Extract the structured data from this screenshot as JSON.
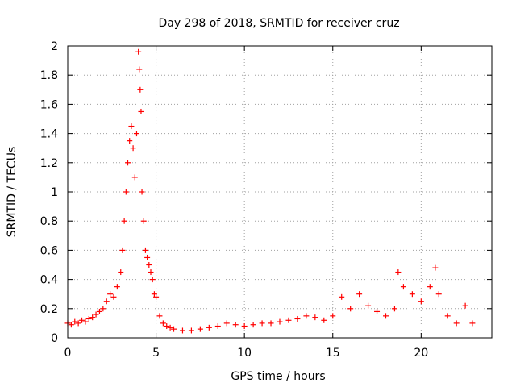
{
  "chart_data": {
    "type": "scatter",
    "title": "Day 298 of 2018, SRMTID for receiver cruz",
    "xlabel": "GPS time / hours",
    "ylabel": "SRMTID / TECUs",
    "xlim": [
      0,
      24
    ],
    "ylim": [
      0,
      2
    ],
    "x_ticks": [
      0,
      5,
      10,
      15,
      20
    ],
    "x_tick_labels": [
      "0",
      "5",
      "10",
      "15",
      "20"
    ],
    "y_ticks": [
      0,
      0.2,
      0.4,
      0.6,
      0.8,
      1,
      1.2,
      1.4,
      1.6,
      1.8,
      2
    ],
    "y_tick_labels": [
      "0",
      "0.2",
      "0.4",
      "0.6",
      "0.8",
      "1",
      "1.2",
      "1.4",
      "1.6",
      "1.8",
      "2"
    ],
    "grid": true,
    "marker": "+",
    "series": [
      {
        "name": "SRMTID",
        "color": "#ff0000",
        "x": [
          0.0,
          0.2,
          0.4,
          0.6,
          0.8,
          1.0,
          1.2,
          1.4,
          1.6,
          1.8,
          2.0,
          2.2,
          2.4,
          2.6,
          2.8,
          3.0,
          3.1,
          3.2,
          3.3,
          3.4,
          3.5,
          3.6,
          3.7,
          3.8,
          3.9,
          4.0,
          4.05,
          4.1,
          4.15,
          4.2,
          4.3,
          4.4,
          4.5,
          4.6,
          4.7,
          4.8,
          4.9,
          5.0,
          5.2,
          5.4,
          5.6,
          5.8,
          6.0,
          6.5,
          7.0,
          7.5,
          8.0,
          8.5,
          9.0,
          9.5,
          10.0,
          10.5,
          11.0,
          11.5,
          12.0,
          12.5,
          13.0,
          13.5,
          14.0,
          14.5,
          15.0,
          15.5,
          16.0,
          16.5,
          17.0,
          17.5,
          18.0,
          18.5,
          18.7,
          19.0,
          19.5,
          20.0,
          20.5,
          20.8,
          21.0,
          21.5,
          22.0,
          22.5,
          22.9
        ],
        "y": [
          0.1,
          0.09,
          0.11,
          0.1,
          0.12,
          0.11,
          0.13,
          0.14,
          0.16,
          0.18,
          0.2,
          0.25,
          0.3,
          0.28,
          0.35,
          0.45,
          0.6,
          0.8,
          1.0,
          1.2,
          1.35,
          1.45,
          1.3,
          1.1,
          1.4,
          1.96,
          1.84,
          1.7,
          1.55,
          1.0,
          0.8,
          0.6,
          0.55,
          0.5,
          0.45,
          0.4,
          0.3,
          0.28,
          0.15,
          0.1,
          0.08,
          0.07,
          0.06,
          0.05,
          0.05,
          0.06,
          0.07,
          0.08,
          0.1,
          0.09,
          0.08,
          0.09,
          0.1,
          0.1,
          0.11,
          0.12,
          0.13,
          0.15,
          0.14,
          0.12,
          0.15,
          0.28,
          0.2,
          0.3,
          0.22,
          0.18,
          0.15,
          0.2,
          0.45,
          0.35,
          0.3,
          0.25,
          0.35,
          0.48,
          0.3,
          0.15,
          0.1,
          0.22,
          0.1
        ]
      }
    ]
  }
}
